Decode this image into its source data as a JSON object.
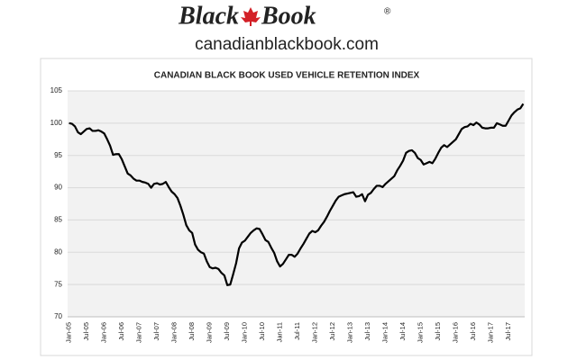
{
  "header": {
    "brand_left": "Black",
    "brand_right": "Book",
    "registered": "®",
    "url": "canadianblackbook.com"
  },
  "chart_data": {
    "type": "line",
    "title": "CANADIAN BLACK BOOK USED VEHICLE RETENTION INDEX",
    "categories": [
      "Jan-05",
      null,
      null,
      null,
      null,
      null,
      "Jul-05",
      null,
      null,
      null,
      null,
      null,
      "Jan-06",
      null,
      null,
      null,
      null,
      null,
      "Jul-06",
      null,
      null,
      null,
      null,
      null,
      "Jan-07",
      null,
      null,
      null,
      null,
      null,
      "Jul-07",
      null,
      null,
      null,
      null,
      null,
      "Jan-08",
      null,
      null,
      null,
      null,
      null,
      "Jul-08",
      null,
      null,
      null,
      null,
      null,
      "Jan-09",
      null,
      null,
      null,
      null,
      null,
      "Jul-09",
      null,
      null,
      null,
      null,
      null,
      "Jan-10",
      null,
      null,
      null,
      null,
      null,
      "Jul-10",
      null,
      null,
      null,
      null,
      null,
      "Jan-11",
      null,
      null,
      null,
      null,
      null,
      "Jul-11",
      null,
      null,
      null,
      null,
      null,
      "Jan-12",
      null,
      null,
      null,
      null,
      null,
      "Jul-12",
      null,
      null,
      null,
      null,
      null,
      "Jan-13",
      null,
      null,
      null,
      null,
      null,
      "Jul-13",
      null,
      null,
      null,
      null,
      null,
      "Jan-14",
      null,
      null,
      null,
      null,
      null,
      "Jul-14",
      null,
      null,
      null,
      null,
      null,
      "Jan-15",
      null,
      null,
      null,
      null,
      null,
      "Jul-15",
      null,
      null,
      null,
      null,
      null,
      "Jan-16",
      null,
      null,
      null,
      null,
      null,
      "Jul-16",
      null,
      null,
      null,
      null,
      null,
      "Jan-17",
      null,
      null,
      null,
      null,
      null,
      "Jul-17",
      null,
      null,
      null,
      null,
      null
    ],
    "values": [
      100,
      99.9,
      99.5,
      98.6,
      98.3,
      98.7,
      99.1,
      99.2,
      98.8,
      98.8,
      98.9,
      98.7,
      98.4,
      97.5,
      96.5,
      95.1,
      95.2,
      95.2,
      94.4,
      93.3,
      92.2,
      91.9,
      91.4,
      91.1,
      91.1,
      90.9,
      90.8,
      90.6,
      90,
      90.6,
      90.7,
      90.5,
      90.6,
      90.9,
      90.1,
      89.4,
      89.0,
      88.4,
      87.2,
      85.8,
      84.2,
      83.4,
      83.0,
      81.2,
      80.4,
      80.0,
      79.8,
      78.6,
      77.7,
      77.5,
      77.6,
      77.4,
      76.8,
      76.4,
      74.9,
      75.0,
      76.6,
      78.3,
      80.6,
      81.5,
      81.8,
      82.4,
      83.0,
      83.4,
      83.7,
      83.6,
      82.8,
      81.9,
      81.6,
      80.7,
      79.9,
      78.6,
      77.8,
      78.2,
      78.9,
      79.6,
      79.6,
      79.3,
      79.8,
      80.6,
      81.3,
      82.1,
      82.9,
      83.3,
      83.1,
      83.4,
      84.1,
      84.7,
      85.5,
      86.4,
      87.2,
      88.0,
      88.6,
      88.8,
      89.0,
      89.1,
      89.2,
      89.3,
      88.6,
      88.7,
      89.0,
      87.9,
      88.9,
      89.2,
      89.8,
      90.3,
      90.3,
      90.1,
      90.6,
      91.0,
      91.4,
      91.8,
      92.7,
      93.4,
      94.2,
      95.4,
      95.7,
      95.8,
      95.4,
      94.6,
      94.3,
      93.6,
      93.8,
      94.0,
      93.8,
      94.5,
      95.4,
      96.2,
      96.6,
      96.3,
      96.7,
      97.1,
      97.5,
      98.3,
      99.1,
      99.4,
      99.5,
      99.9,
      99.7,
      100.1,
      99.8,
      99.3,
      99.2,
      99.2,
      99.3,
      99.3,
      100.0,
      99.8,
      99.6,
      99.6,
      100.4,
      101.2,
      101.7,
      102.1,
      102.3,
      103.0
    ],
    "color": "#000000",
    "ylim": [
      70,
      105
    ],
    "yticks": [
      70,
      75,
      80,
      85,
      90,
      95,
      100,
      105
    ],
    "grid": true
  }
}
